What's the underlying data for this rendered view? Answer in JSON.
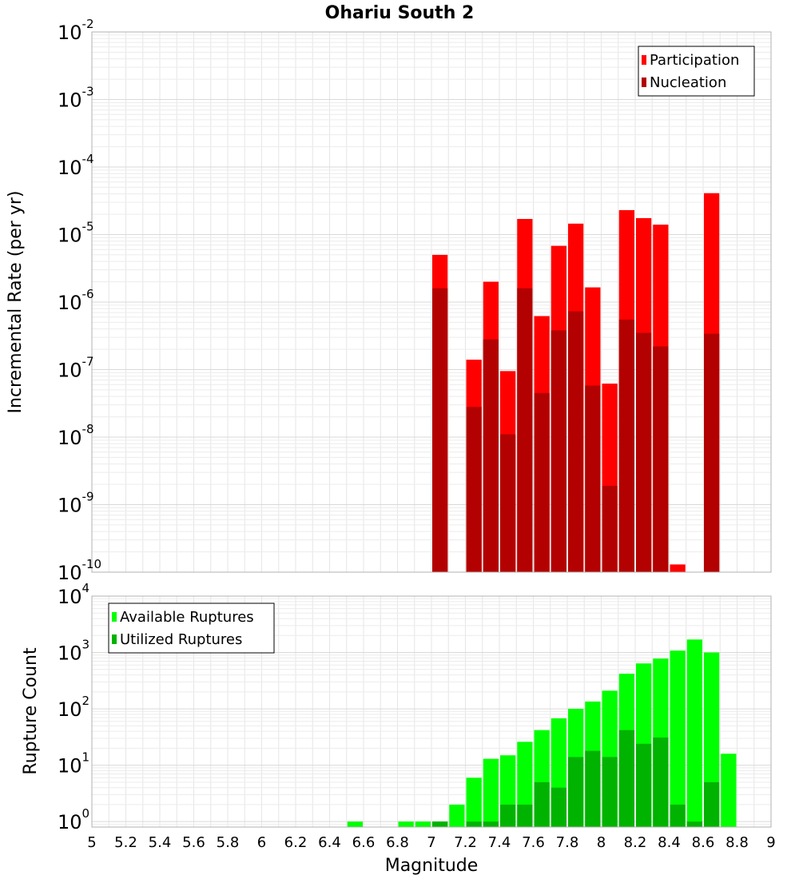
{
  "chart_data": [
    {
      "type": "bar",
      "title": "Ohariu South 2",
      "xlabel": "",
      "ylabel": "Incremental Rate (per yr)",
      "x_scale": "linear",
      "y_scale": "log",
      "xlim": [
        5,
        9
      ],
      "ylim": [
        1e-10,
        0.01
      ],
      "ytick_exponents": [
        -10,
        -9,
        -8,
        -7,
        -6,
        -5,
        -4,
        -3,
        -2
      ],
      "grid": true,
      "legend_position": "top-right",
      "series": [
        {
          "name": "Participation",
          "color": "#ff0000",
          "x": [
            7.05,
            7.25,
            7.35,
            7.45,
            7.55,
            7.65,
            7.75,
            7.85,
            7.95,
            8.05,
            8.15,
            8.25,
            8.35,
            8.45,
            8.65
          ],
          "values": [
            5e-06,
            1.4e-07,
            2e-06,
            9.5e-08,
            1.7e-05,
            6.2e-07,
            6.8e-06,
            1.45e-05,
            1.65e-06,
            6.2e-08,
            2.3e-05,
            1.75e-05,
            1.4e-05,
            1.3e-10,
            4.1e-05
          ]
        },
        {
          "name": "Nucleation",
          "color": "#b30000",
          "x": [
            7.05,
            7.25,
            7.35,
            7.45,
            7.55,
            7.65,
            7.75,
            7.85,
            7.95,
            8.05,
            8.15,
            8.25,
            8.35,
            8.65
          ],
          "values": [
            1.6e-06,
            2.8e-08,
            2.8e-07,
            1.1e-08,
            1.6e-06,
            4.5e-08,
            3.8e-07,
            7.3e-07,
            5.8e-08,
            1.9e-09,
            5.5e-07,
            3.5e-07,
            2.2e-07,
            3.4e-07
          ]
        }
      ]
    },
    {
      "type": "bar",
      "title": "",
      "xlabel": "Magnitude",
      "ylabel": "Rupture Count",
      "x_scale": "linear",
      "y_scale": "log",
      "xlim": [
        5,
        9
      ],
      "ylim": [
        0.8,
        10000
      ],
      "ytick_exponents": [
        0,
        1,
        2,
        3,
        4
      ],
      "xticks": [
        "5",
        "5.2",
        "5.4",
        "5.6",
        "5.8",
        "6",
        "6.2",
        "6.4",
        "6.6",
        "6.8",
        "7",
        "7.2",
        "7.4",
        "7.6",
        "7.8",
        "8",
        "8.2",
        "8.4",
        "8.6",
        "8.8",
        "9"
      ],
      "grid": true,
      "legend_position": "top-left",
      "series": [
        {
          "name": "Available Ruptures",
          "color": "#00ff00",
          "x": [
            6.55,
            6.85,
            6.95,
            7.05,
            7.15,
            7.25,
            7.35,
            7.45,
            7.55,
            7.65,
            7.75,
            7.85,
            7.95,
            8.05,
            8.15,
            8.25,
            8.35,
            8.45,
            8.55,
            8.65,
            8.75
          ],
          "values": [
            1,
            1,
            1,
            1,
            2,
            6,
            13,
            15,
            26,
            42,
            68,
            100,
            135,
            210,
            420,
            640,
            780,
            1080,
            1700,
            1000,
            16
          ]
        },
        {
          "name": "Utilized Ruptures",
          "color": "#00b300",
          "x": [
            7.05,
            7.25,
            7.35,
            7.45,
            7.55,
            7.65,
            7.75,
            7.85,
            7.95,
            8.05,
            8.15,
            8.25,
            8.35,
            8.45,
            8.55,
            8.65
          ],
          "values": [
            1,
            1,
            1,
            2,
            2,
            5,
            4,
            14,
            18,
            14,
            42,
            24,
            31,
            2,
            1,
            5
          ]
        }
      ]
    }
  ]
}
